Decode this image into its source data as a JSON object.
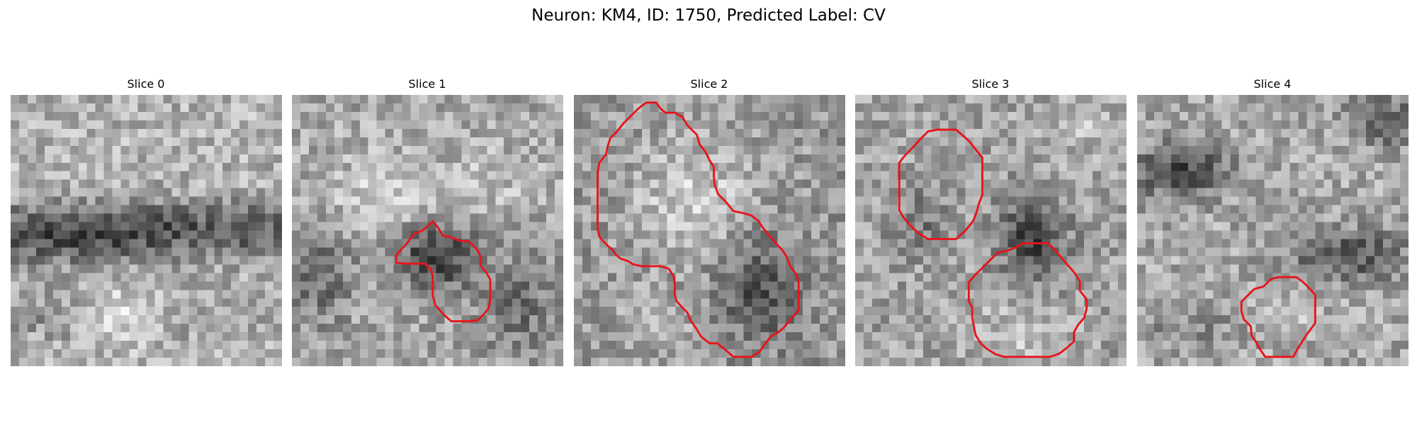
{
  "figure": {
    "title": "Neuron: KM4, ID: 1750, Predicted Label: CV"
  },
  "contour_color": "#e8141b",
  "panels": [
    {
      "title": "Slice 0"
    },
    {
      "title": "Slice 1"
    },
    {
      "title": "Slice 2"
    },
    {
      "title": "Slice 3"
    },
    {
      "title": "Slice 4"
    }
  ]
}
